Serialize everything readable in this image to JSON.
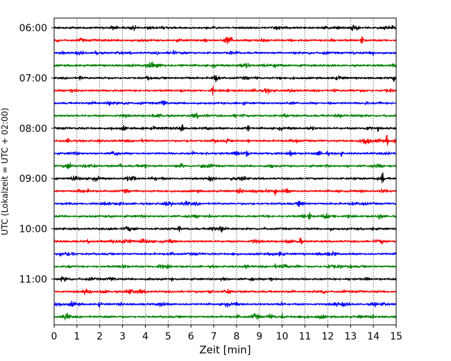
{
  "chart_data": {
    "type": "line",
    "title": "",
    "xlabel": "Zeit  [min]",
    "ylabel": "UTC (Lokalzeit = UTC + 02:00)",
    "xlim": [
      0,
      15
    ],
    "x_ticks": [
      0,
      1,
      2,
      3,
      4,
      5,
      6,
      7,
      8,
      9,
      10,
      11,
      12,
      13,
      14,
      15
    ],
    "x_tick_labels": [
      "0",
      "1",
      "2",
      "3",
      "4",
      "5",
      "6",
      "7",
      "8",
      "9",
      "10",
      "11",
      "12",
      "13",
      "14",
      "15"
    ],
    "y_tick_labels": [
      "06:00",
      "07:00",
      "08:00",
      "09:00",
      "10:00",
      "11:00"
    ],
    "y_tick_rows": [
      0,
      4,
      8,
      12,
      16,
      20
    ],
    "grid": "vertical dotted at each minute",
    "trace_interval_min": 15,
    "trace_colors": [
      "#000000",
      "#ff0000",
      "#0000ff",
      "#008000"
    ],
    "traces": [
      {
        "start": "06:00",
        "events": [
          {
            "t": 13.3,
            "amp": 1.0
          }
        ]
      },
      {
        "start": "06:15",
        "events": [
          {
            "t": 13.5,
            "amp": 1.9
          },
          {
            "t": 6.6,
            "amp": 0.8
          },
          {
            "t": 7.8,
            "amp": 0.5
          }
        ]
      },
      {
        "start": "06:30",
        "events": [
          {
            "t": 1.85,
            "amp": 1.5
          },
          {
            "t": 8.0,
            "amp": 0.5
          }
        ]
      },
      {
        "start": "06:45",
        "events": [
          {
            "t": 3.4,
            "amp": 0.5
          },
          {
            "t": 4.3,
            "amp": 0.9
          }
        ]
      },
      {
        "start": "07:00",
        "events": [
          {
            "t": 14.9,
            "amp": 1.3
          },
          {
            "t": 4.1,
            "amp": 0.6
          }
        ]
      },
      {
        "start": "07:15",
        "events": [
          {
            "t": 6.95,
            "amp": 1.3
          }
        ]
      },
      {
        "start": "07:30",
        "events": [
          {
            "t": 3.3,
            "amp": 0.4
          },
          {
            "t": 14.3,
            "amp": 0.4
          }
        ]
      },
      {
        "start": "07:45",
        "events": [
          {
            "t": 8.3,
            "amp": 0.4
          }
        ]
      },
      {
        "start": "08:00",
        "events": [
          {
            "t": 5.6,
            "amp": 1.7
          },
          {
            "t": 8.5,
            "amp": 1.3
          },
          {
            "t": 2.5,
            "amp": 0.5
          },
          {
            "t": 14.2,
            "amp": 0.6
          }
        ]
      },
      {
        "start": "08:15",
        "events": [
          {
            "t": 14.6,
            "amp": 1.7
          },
          {
            "t": 7.6,
            "amp": 0.8
          },
          {
            "t": 0.6,
            "amp": 0.4
          }
        ]
      },
      {
        "start": "08:30",
        "events": [
          {
            "t": 8.4,
            "amp": 0.8
          },
          {
            "t": 10.4,
            "amp": 0.8
          },
          {
            "t": 12.6,
            "amp": 0.8
          },
          {
            "t": 6.1,
            "amp": 0.6
          }
        ]
      },
      {
        "start": "08:45",
        "events": [
          {
            "t": 6.5,
            "amp": 1.1
          },
          {
            "t": 4.0,
            "amp": 0.7
          },
          {
            "t": 2.9,
            "amp": 0.6
          },
          {
            "t": 5.6,
            "amp": 0.6
          }
        ]
      },
      {
        "start": "09:00",
        "events": [
          {
            "t": 14.4,
            "amp": 1.9
          },
          {
            "t": 7.8,
            "amp": 1.0
          },
          {
            "t": 13.2,
            "amp": 0.6
          }
        ]
      },
      {
        "start": "09:15",
        "events": [
          {
            "t": 9.7,
            "amp": 1.5
          },
          {
            "t": 12.4,
            "amp": 0.3
          }
        ]
      },
      {
        "start": "09:30",
        "events": [
          {
            "t": 8.7,
            "amp": 0.3
          }
        ]
      },
      {
        "start": "09:45",
        "events": [
          {
            "t": 11.2,
            "amp": 1.9
          },
          {
            "t": 12.3,
            "amp": 0.4
          }
        ]
      },
      {
        "start": "10:00",
        "events": [
          {
            "t": 5.5,
            "amp": 0.9
          },
          {
            "t": 3.2,
            "amp": 0.4
          },
          {
            "t": 9.2,
            "amp": 0.4
          }
        ]
      },
      {
        "start": "10:15",
        "events": [
          {
            "t": 10.8,
            "amp": 1.3
          },
          {
            "t": 1.5,
            "amp": 0.6
          },
          {
            "t": 2.5,
            "amp": 0.6
          }
        ]
      },
      {
        "start": "10:30",
        "events": [
          {
            "t": 0.3,
            "amp": 0.9
          },
          {
            "t": 9.6,
            "amp": 0.5
          }
        ]
      },
      {
        "start": "10:45",
        "events": [
          {
            "t": 6.9,
            "amp": 0.4
          },
          {
            "t": 12.6,
            "amp": 0.4
          }
        ]
      },
      {
        "start": "11:00",
        "events": [
          {
            "t": 4.2,
            "amp": 0.4
          },
          {
            "t": 8.7,
            "amp": 0.3
          }
        ]
      },
      {
        "start": "11:15",
        "events": [
          {
            "t": 7.5,
            "amp": 0.3
          }
        ]
      },
      {
        "start": "11:30",
        "events": [
          {
            "t": 2.0,
            "amp": 0.8
          },
          {
            "t": 14.1,
            "amp": 0.6
          }
        ]
      },
      {
        "start": "11:45",
        "events": [
          {
            "t": 10.0,
            "amp": 1.0
          },
          {
            "t": 0.5,
            "amp": 0.5
          },
          {
            "t": 14.0,
            "amp": 0.6
          }
        ]
      }
    ]
  }
}
